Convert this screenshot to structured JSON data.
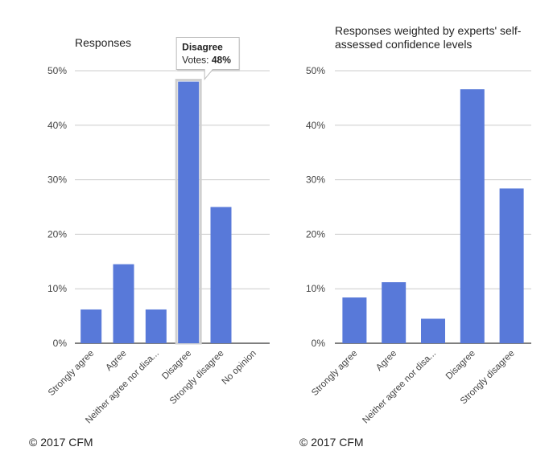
{
  "chart_data": [
    {
      "type": "bar",
      "title": "Responses",
      "categories": [
        "Strongly agree",
        "Agree",
        "Neither agree nor disa...",
        "Disagree",
        "Strongly disagree",
        "No opinion"
      ],
      "values": [
        6.2,
        14.5,
        6.2,
        48,
        25,
        0
      ],
      "ylim": [
        0,
        50
      ],
      "yticks": [
        "0%",
        "10%",
        "20%",
        "30%",
        "40%",
        "50%"
      ],
      "grid": true,
      "color": "#5879d9",
      "tooltip": {
        "title": "Disagree",
        "label": "Votes: ",
        "value": "48%"
      },
      "footer": "© 2017 CFM"
    },
    {
      "type": "bar",
      "title_lines": [
        "Responses weighted by experts' self-",
        "assessed confidence levels"
      ],
      "categories": [
        "Strongly agree",
        "Agree",
        "Neither agree nor disa...",
        "Disagree",
        "Strongly disagree"
      ],
      "values": [
        8.4,
        11.2,
        4.5,
        46.6,
        28.4
      ],
      "ylim": [
        0,
        50
      ],
      "yticks": [
        "0%",
        "10%",
        "20%",
        "30%",
        "40%",
        "50%"
      ],
      "grid": true,
      "color": "#5879d9",
      "footer": "© 2017 CFM"
    }
  ]
}
